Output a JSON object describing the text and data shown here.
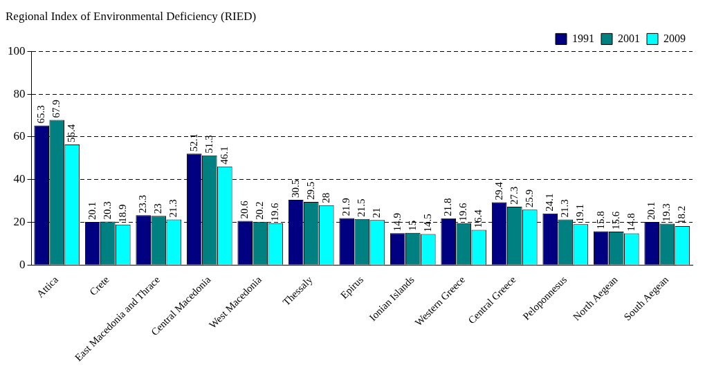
{
  "chart_data": {
    "type": "bar",
    "title": "Regional Index of Environmental Deficiency (RIED)",
    "categories": [
      "Attica",
      "Crete",
      "East Macedonia and Thrace",
      "Central Macedonia",
      "West Macedonia",
      "Thessaly",
      "Epirus",
      "Ionian Islands",
      "Western Greece",
      "Central Greece",
      "Peloponnesus",
      "North Aegean",
      "South Aegean"
    ],
    "series": [
      {
        "name": "1991",
        "color": "#000080",
        "values": [
          65.3,
          20.1,
          23.3,
          52.1,
          20.6,
          30.5,
          21.9,
          14.9,
          21.8,
          29.4,
          24.1,
          15.8,
          20.1
        ]
      },
      {
        "name": "2001",
        "color": "#008080",
        "values": [
          67.9,
          20.3,
          23,
          51.3,
          20.2,
          29.5,
          21.5,
          15,
          19.6,
          27.3,
          21.3,
          15.6,
          19.3
        ]
      },
      {
        "name": "2009",
        "color": "#00ffff",
        "values": [
          56.4,
          18.9,
          21.3,
          46.1,
          19.6,
          28,
          21,
          14.5,
          16.4,
          25.9,
          19.1,
          14.8,
          18.2
        ]
      }
    ],
    "ylim": [
      0,
      100
    ],
    "yticks": [
      0,
      20,
      40,
      60,
      80,
      100
    ],
    "grid": "y",
    "line_style": "dashed",
    "legend": "top right",
    "data_labels": true
  }
}
